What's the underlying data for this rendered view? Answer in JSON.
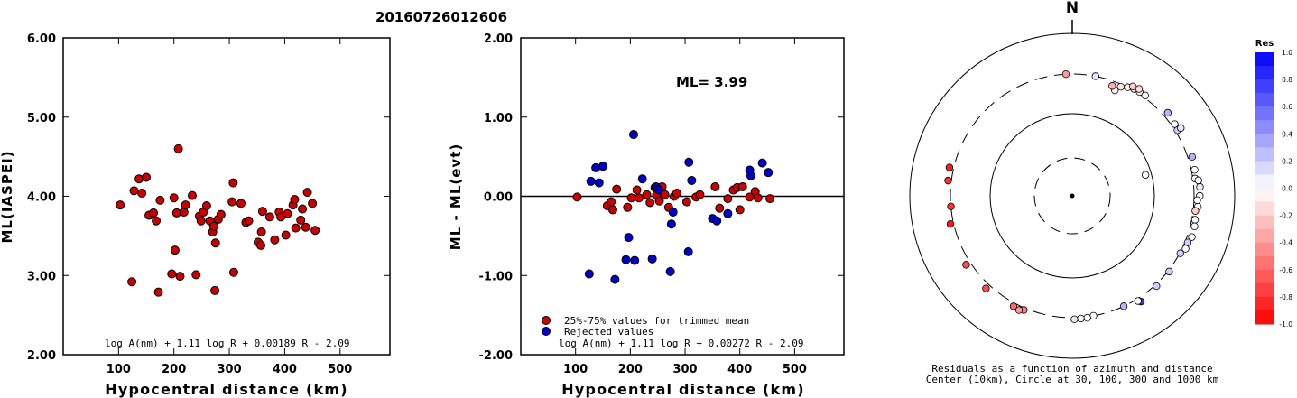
{
  "title": "20160726012606",
  "chart_data": [
    {
      "type": "scatter",
      "xlabel": "Hypocentral distance (km)",
      "ylabel": "ML(IASPEI)",
      "xlim": [
        0,
        590
      ],
      "ylim": [
        2.0,
        6.0
      ],
      "xticks": [
        "100",
        "200",
        "300",
        "400",
        "500"
      ],
      "yticks": [
        "2.00",
        "3.00",
        "4.00",
        "5.00",
        "6.00"
      ],
      "formula": "log A(nm) + 1.11 log R + 0.00189 R - 2.09",
      "marker_color": "#cc0000",
      "points": [
        [
          103,
          3.89
        ],
        [
          124,
          2.92
        ],
        [
          128,
          4.07
        ],
        [
          137,
          4.22
        ],
        [
          142,
          4.04
        ],
        [
          150,
          4.24
        ],
        [
          155,
          3.76
        ],
        [
          163,
          3.79
        ],
        [
          168,
          3.69
        ],
        [
          172,
          2.79
        ],
        [
          175,
          3.95
        ],
        [
          196,
          3.02
        ],
        [
          200,
          3.98
        ],
        [
          202,
          3.32
        ],
        [
          205,
          3.79
        ],
        [
          208,
          4.6
        ],
        [
          211,
          2.99
        ],
        [
          218,
          3.8
        ],
        [
          221,
          3.89
        ],
        [
          233,
          4.01
        ],
        [
          240,
          3.01
        ],
        [
          246,
          3.75
        ],
        [
          249,
          3.69
        ],
        [
          253,
          3.8
        ],
        [
          259,
          3.88
        ],
        [
          265,
          3.69
        ],
        [
          270,
          3.55
        ],
        [
          274,
          2.81
        ],
        [
          272,
          3.62
        ],
        [
          275,
          3.41
        ],
        [
          280,
          3.71
        ],
        [
          285,
          3.77
        ],
        [
          305,
          3.93
        ],
        [
          307,
          4.17
        ],
        [
          308,
          3.04
        ],
        [
          321,
          3.91
        ],
        [
          330,
          3.67
        ],
        [
          335,
          3.69
        ],
        [
          352,
          3.42
        ],
        [
          357,
          3.38
        ],
        [
          358,
          3.55
        ],
        [
          360,
          3.81
        ],
        [
          373,
          3.74
        ],
        [
          382,
          3.45
        ],
        [
          390,
          3.8
        ],
        [
          393,
          3.74
        ],
        [
          402,
          3.51
        ],
        [
          405,
          3.78
        ],
        [
          415,
          3.89
        ],
        [
          418,
          3.96
        ],
        [
          420,
          3.6
        ],
        [
          429,
          3.7
        ],
        [
          432,
          3.84
        ],
        [
          438,
          3.61
        ],
        [
          441,
          4.05
        ],
        [
          450,
          3.91
        ],
        [
          455,
          3.57
        ]
      ]
    },
    {
      "type": "scatter",
      "xlabel": "Hypocentral distance (km)",
      "ylabel": "ML - ML(evt)",
      "xlim": [
        0,
        590
      ],
      "ylim": [
        -2.0,
        2.0
      ],
      "xticks": [
        "100",
        "200",
        "300",
        "400",
        "500"
      ],
      "yticks": [
        "-2.00",
        "-1.00",
        "0.00",
        "1.00",
        "2.00"
      ],
      "annotation": "ML= 3.99",
      "formula": "log A(nm) + 1.11 log R + 0.00272 R - 2.09",
      "series": [
        {
          "name": "25%-75% values for trimmed mean",
          "color": "#cc0000",
          "points": [
            [
              103,
              -0.01
            ],
            [
              158,
              -0.12
            ],
            [
              165,
              -0.07
            ],
            [
              168,
              -0.17
            ],
            [
              175,
              0.09
            ],
            [
              195,
              -0.14
            ],
            [
              202,
              -0.02
            ],
            [
              212,
              0.08
            ],
            [
              216,
              -0.02
            ],
            [
              230,
              0.02
            ],
            [
              236,
              -0.08
            ],
            [
              245,
              0.11
            ],
            [
              248,
              0.02
            ],
            [
              253,
              -0.06
            ],
            [
              258,
              0.12
            ],
            [
              263,
              0.02
            ],
            [
              270,
              -0.14
            ],
            [
              280,
              0.0
            ],
            [
              285,
              0.04
            ],
            [
              303,
              -0.07
            ],
            [
              320,
              -0.01
            ],
            [
              327,
              0.02
            ],
            [
              355,
              0.12
            ],
            [
              363,
              -0.15
            ],
            [
              378,
              -0.03
            ],
            [
              388,
              0.08
            ],
            [
              395,
              0.11
            ],
            [
              400,
              -0.17
            ],
            [
              405,
              0.12
            ],
            [
              418,
              -0.01
            ],
            [
              428,
              0.06
            ],
            [
              433,
              -0.02
            ],
            [
              455,
              -0.03
            ]
          ]
        },
        {
          "name": "Rejected values",
          "color": "#0000cc",
          "points": [
            [
              125,
              -0.98
            ],
            [
              128,
              0.19
            ],
            [
              137,
              0.36
            ],
            [
              143,
              0.17
            ],
            [
              150,
              0.38
            ],
            [
              172,
              -1.05
            ],
            [
              192,
              -0.8
            ],
            [
              197,
              -0.52
            ],
            [
              206,
              0.78
            ],
            [
              208,
              -0.81
            ],
            [
              222,
              0.22
            ],
            [
              240,
              -0.79
            ],
            [
              247,
              0.12
            ],
            [
              252,
              0.08
            ],
            [
              273,
              -0.95
            ],
            [
              275,
              -0.35
            ],
            [
              278,
              -0.2
            ],
            [
              306,
              -0.7
            ],
            [
              307,
              0.43
            ],
            [
              312,
              0.2
            ],
            [
              350,
              -0.28
            ],
            [
              358,
              -0.31
            ],
            [
              378,
              -0.22
            ],
            [
              418,
              0.33
            ],
            [
              420,
              0.26
            ],
            [
              441,
              0.42
            ],
            [
              452,
              0.3
            ]
          ]
        }
      ]
    },
    {
      "type": "scatter",
      "subtype": "polar residual map",
      "north_label": "N",
      "caption_line1": "Residuals as a function of azimuth and distance",
      "caption_line2": "Center (10km), Circle at 30, 100, 300 and 1000 km",
      "colorbar": {
        "title": "Res",
        "ticks": [
          "1.0",
          "0.8",
          "0.6",
          "0.4",
          "0.2",
          "0.0",
          "-0.2",
          "-0.4",
          "-0.6",
          "-0.8",
          "-1.0"
        ],
        "range": [
          -1.0,
          1.0
        ],
        "positive_color": "#0000ff",
        "negative_color": "#ff0000"
      },
      "stations": [
        {
          "az": 22,
          "dist": 240,
          "res": -0.05
        },
        {
          "az": 20,
          "dist": 262,
          "res": -0.3
        },
        {
          "az": 24,
          "dist": 280,
          "res": -0.1
        },
        {
          "az": 27,
          "dist": 300,
          "res": -0.05
        },
        {
          "az": 30,
          "dist": 315,
          "res": 0.0
        },
        {
          "az": 33,
          "dist": 318,
          "res": -0.1
        },
        {
          "az": 36,
          "dist": 320,
          "res": -0.05
        },
        {
          "az": 29,
          "dist": 330,
          "res": -0.2
        },
        {
          "az": 32,
          "dist": 340,
          "res": -0.15
        },
        {
          "az": 11,
          "dist": 300,
          "res": 0.1
        },
        {
          "az": -3,
          "dist": 300,
          "res": -0.4
        },
        {
          "az": 49,
          "dist": 345,
          "res": 0.3
        },
        {
          "az": 58,
          "dist": 320,
          "res": 0.2
        },
        {
          "az": 55,
          "dist": 330,
          "res": 0.0
        },
        {
          "az": 58,
          "dist": 360,
          "res": 0.1
        },
        {
          "az": 72,
          "dist": 340,
          "res": 0.3
        },
        {
          "az": 78,
          "dist": 330,
          "res": 0.0
        },
        {
          "az": 82,
          "dist": 320,
          "res": 0.0
        },
        {
          "az": 83,
          "dist": 350,
          "res": 0.0
        },
        {
          "az": 86,
          "dist": 360,
          "res": 0.1
        },
        {
          "az": 90,
          "dist": 355,
          "res": 0.0
        },
        {
          "az": 92,
          "dist": 330,
          "res": 0.0
        },
        {
          "az": 95,
          "dist": 340,
          "res": 0.0
        },
        {
          "az": 97,
          "dist": 320,
          "res": -0.2
        },
        {
          "az": 101,
          "dist": 330,
          "res": 0.0
        },
        {
          "az": 104,
          "dist": 340,
          "res": 0.0
        },
        {
          "az": 109,
          "dist": 345,
          "res": 0.0
        },
        {
          "az": 112,
          "dist": 325,
          "res": 0.2
        },
        {
          "az": 115,
          "dist": 330,
          "res": 0.0
        },
        {
          "az": 118,
          "dist": 305,
          "res": 0.2
        },
        {
          "az": 128,
          "dist": 310,
          "res": 0.2
        },
        {
          "az": 137,
          "dist": 315,
          "res": 0.2
        },
        {
          "az": 147,
          "dist": 340,
          "res": 0.8
        },
        {
          "az": 148,
          "dist": 320,
          "res": 0.0
        },
        {
          "az": 155,
          "dist": 300,
          "res": 0.3
        },
        {
          "az": 170,
          "dist": 300,
          "res": 0.0
        },
        {
          "az": 173,
          "dist": 310,
          "res": 0.0
        },
        {
          "az": 176,
          "dist": 310,
          "res": 0.0
        },
        {
          "az": 179,
          "dist": 315,
          "res": 0.1
        },
        {
          "az": 203,
          "dist": 320,
          "res": -0.5
        },
        {
          "az": 205,
          "dist": 340,
          "res": -0.4
        },
        {
          "az": 208,
          "dist": 330,
          "res": -0.6
        },
        {
          "az": 223,
          "dist": 345,
          "res": -0.7
        },
        {
          "az": 237,
          "dist": 345,
          "res": -0.7
        },
        {
          "az": 257,
          "dist": 330,
          "res": -0.9
        },
        {
          "az": 265,
          "dist": 300,
          "res": -0.8
        },
        {
          "az": 277,
          "dist": 330,
          "res": -0.8
        },
        {
          "az": 283,
          "dist": 340,
          "res": -0.9
        },
        {
          "az": 74,
          "dist": 85,
          "res": 0.0
        }
      ]
    }
  ]
}
